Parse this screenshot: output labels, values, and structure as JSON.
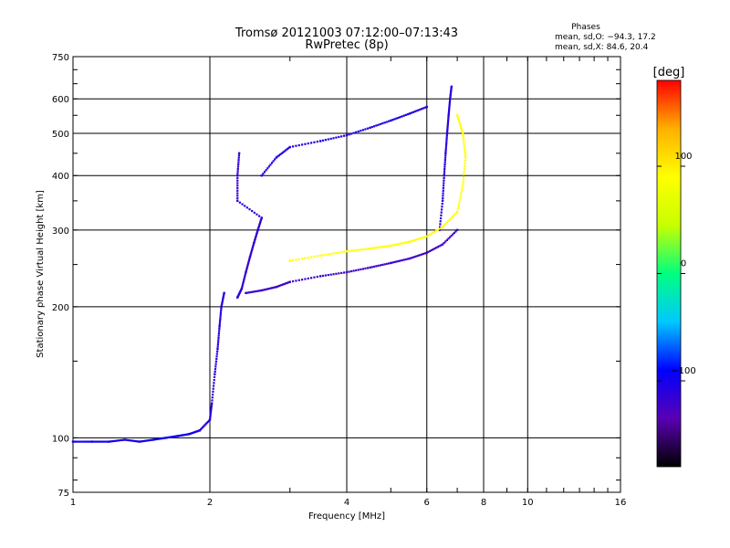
{
  "chart_data": {
    "type": "scatter",
    "title": "Tromsø 20121003 07:12:00–07:13:43",
    "subtitle": "RwPretec (8p)",
    "xlabel": "Frequency [MHz]",
    "ylabel": "Stationary phase Virtual Height [km]",
    "xscale": "log",
    "yscale": "log",
    "xlim": [
      1,
      16
    ],
    "ylim": [
      75,
      750
    ],
    "x_ticks": [
      1,
      2,
      4,
      6,
      8,
      10,
      16
    ],
    "x_tick_labels": [
      "1",
      "2",
      "4",
      "6",
      "8",
      "10",
      "16"
    ],
    "x_grid": [
      2,
      4,
      6,
      8,
      10
    ],
    "y_ticks": [
      75,
      100,
      200,
      300,
      400,
      500,
      600,
      750
    ],
    "y_tick_labels": [
      "75",
      "100",
      "200",
      "300",
      "400",
      "500",
      "600",
      "750"
    ],
    "y_grid": [
      100,
      200,
      300,
      400,
      500,
      600
    ],
    "grid": true,
    "legend_title": "Phases",
    "legend_lines": [
      "mean, sd,O: −94.3, 17.2",
      "mean, sd,X:  84.6, 20.4"
    ],
    "legend_position": "top-right",
    "colorbar": {
      "label": "[deg]",
      "range": [
        -180,
        180
      ],
      "ticks": [
        100,
        0,
        -100
      ],
      "tick_labels": [
        "100",
        "0",
        "−100"
      ],
      "stops": [
        "#000000",
        "#5a00b4",
        "#0000ff",
        "#00c8ff",
        "#00ff80",
        "#c8ff00",
        "#ffff00",
        "#ffb000",
        "#ff0000"
      ]
    },
    "series": [
      {
        "trace": "o-low-E",
        "phase": -100,
        "points": [
          [
            1.0,
            98
          ],
          [
            1.1,
            98
          ],
          [
            1.2,
            98
          ],
          [
            1.3,
            99
          ],
          [
            1.4,
            98
          ],
          [
            1.5,
            99
          ],
          [
            1.6,
            100
          ],
          [
            1.7,
            101
          ],
          [
            1.8,
            102
          ],
          [
            1.9,
            104
          ]
        ]
      },
      {
        "trace": "o-E-rise",
        "phase": -110,
        "points": [
          [
            1.9,
            104
          ],
          [
            2.0,
            110
          ],
          [
            2.02,
            120
          ],
          [
            2.05,
            140
          ],
          [
            2.08,
            160
          ],
          [
            2.1,
            180
          ],
          [
            2.12,
            200
          ],
          [
            2.15,
            215
          ]
        ]
      },
      {
        "trace": "o-F-spread",
        "phase": -115,
        "points": [
          [
            2.3,
            210
          ],
          [
            2.35,
            220
          ],
          [
            2.4,
            240
          ],
          [
            2.45,
            260
          ],
          [
            2.5,
            280
          ],
          [
            2.55,
            300
          ],
          [
            2.6,
            320
          ],
          [
            2.3,
            350
          ],
          [
            2.3,
            400
          ],
          [
            2.32,
            450
          ]
        ]
      },
      {
        "trace": "o-F-upper",
        "phase": -105,
        "points": [
          [
            2.6,
            400
          ],
          [
            2.8,
            440
          ],
          [
            3.0,
            465
          ],
          [
            3.5,
            480
          ],
          [
            4.0,
            495
          ],
          [
            4.5,
            515
          ],
          [
            5.0,
            535
          ],
          [
            5.5,
            555
          ],
          [
            6.0,
            575
          ]
        ]
      },
      {
        "trace": "o-F-lower",
        "phase": -120,
        "points": [
          [
            2.4,
            215
          ],
          [
            2.6,
            218
          ],
          [
            2.8,
            222
          ],
          [
            3.0,
            228
          ],
          [
            3.5,
            235
          ],
          [
            4.0,
            240
          ],
          [
            4.5,
            246
          ],
          [
            5.0,
            252
          ],
          [
            5.5,
            258
          ],
          [
            6.0,
            266
          ],
          [
            6.5,
            278
          ],
          [
            7.0,
            300
          ]
        ]
      },
      {
        "trace": "o-cusp",
        "phase": -110,
        "points": [
          [
            6.4,
            300
          ],
          [
            6.5,
            350
          ],
          [
            6.55,
            400
          ],
          [
            6.6,
            450
          ],
          [
            6.65,
            500
          ],
          [
            6.7,
            550
          ],
          [
            6.75,
            600
          ],
          [
            6.8,
            640
          ]
        ]
      },
      {
        "trace": "x-F",
        "phase": 90,
        "points": [
          [
            3.0,
            255
          ],
          [
            3.5,
            262
          ],
          [
            4.0,
            268
          ],
          [
            4.5,
            272
          ],
          [
            5.0,
            276
          ],
          [
            5.5,
            282
          ],
          [
            6.0,
            290
          ],
          [
            6.5,
            305
          ],
          [
            7.0,
            330
          ],
          [
            7.2,
            380
          ],
          [
            7.3,
            440
          ],
          [
            7.2,
            500
          ],
          [
            7.0,
            550
          ]
        ]
      }
    ]
  }
}
